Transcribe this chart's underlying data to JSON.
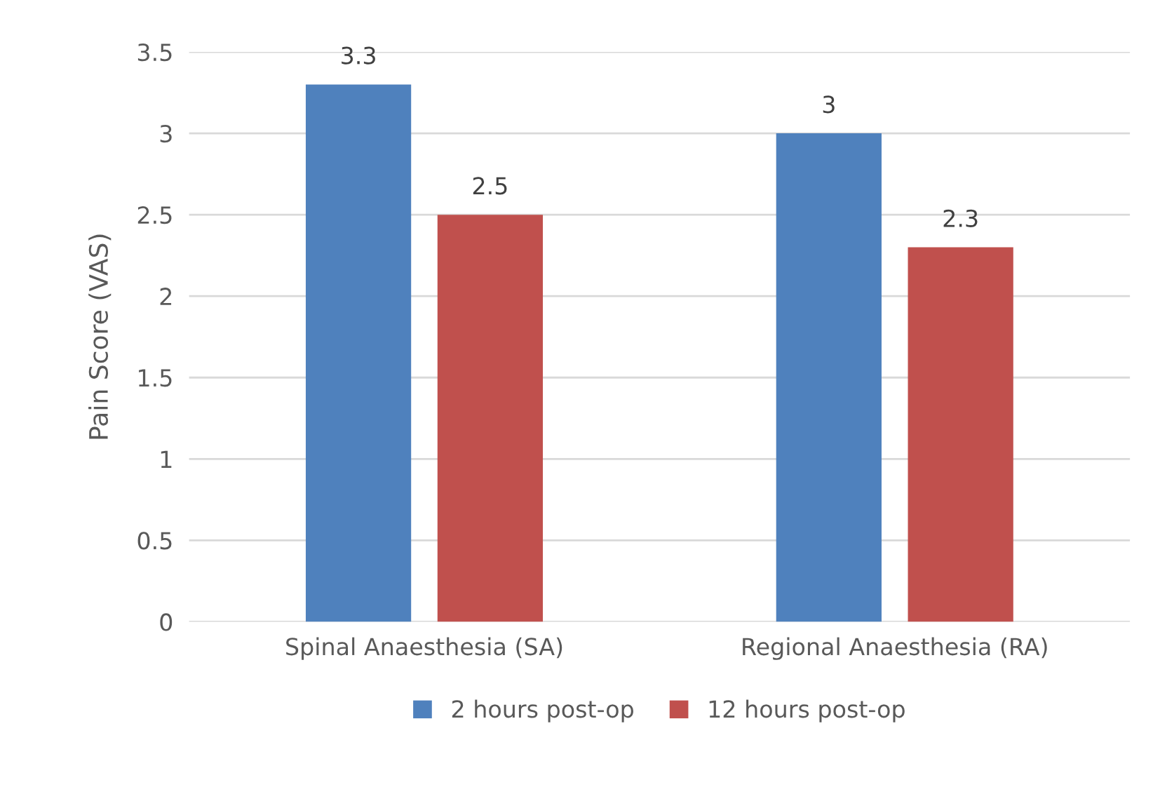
{
  "chart_data": {
    "type": "bar",
    "ylabel": "Pain Score (VAS)",
    "categories": [
      "Spinal Anaesthesia (SA)",
      "Regional Anaesthesia (RA)"
    ],
    "series": [
      {
        "name": "2 hours post-op",
        "color": "#4f81bd",
        "values": [
          3.3,
          3
        ]
      },
      {
        "name": "12 hours post-op",
        "color": "#c0504d",
        "values": [
          2.5,
          2.3
        ]
      }
    ],
    "ylim": [
      0,
      3.5
    ],
    "yticks": [
      0,
      0.5,
      1,
      1.5,
      2,
      2.5,
      3,
      3.5
    ],
    "grid": "y",
    "legend": "bottom",
    "data_labels": true
  }
}
